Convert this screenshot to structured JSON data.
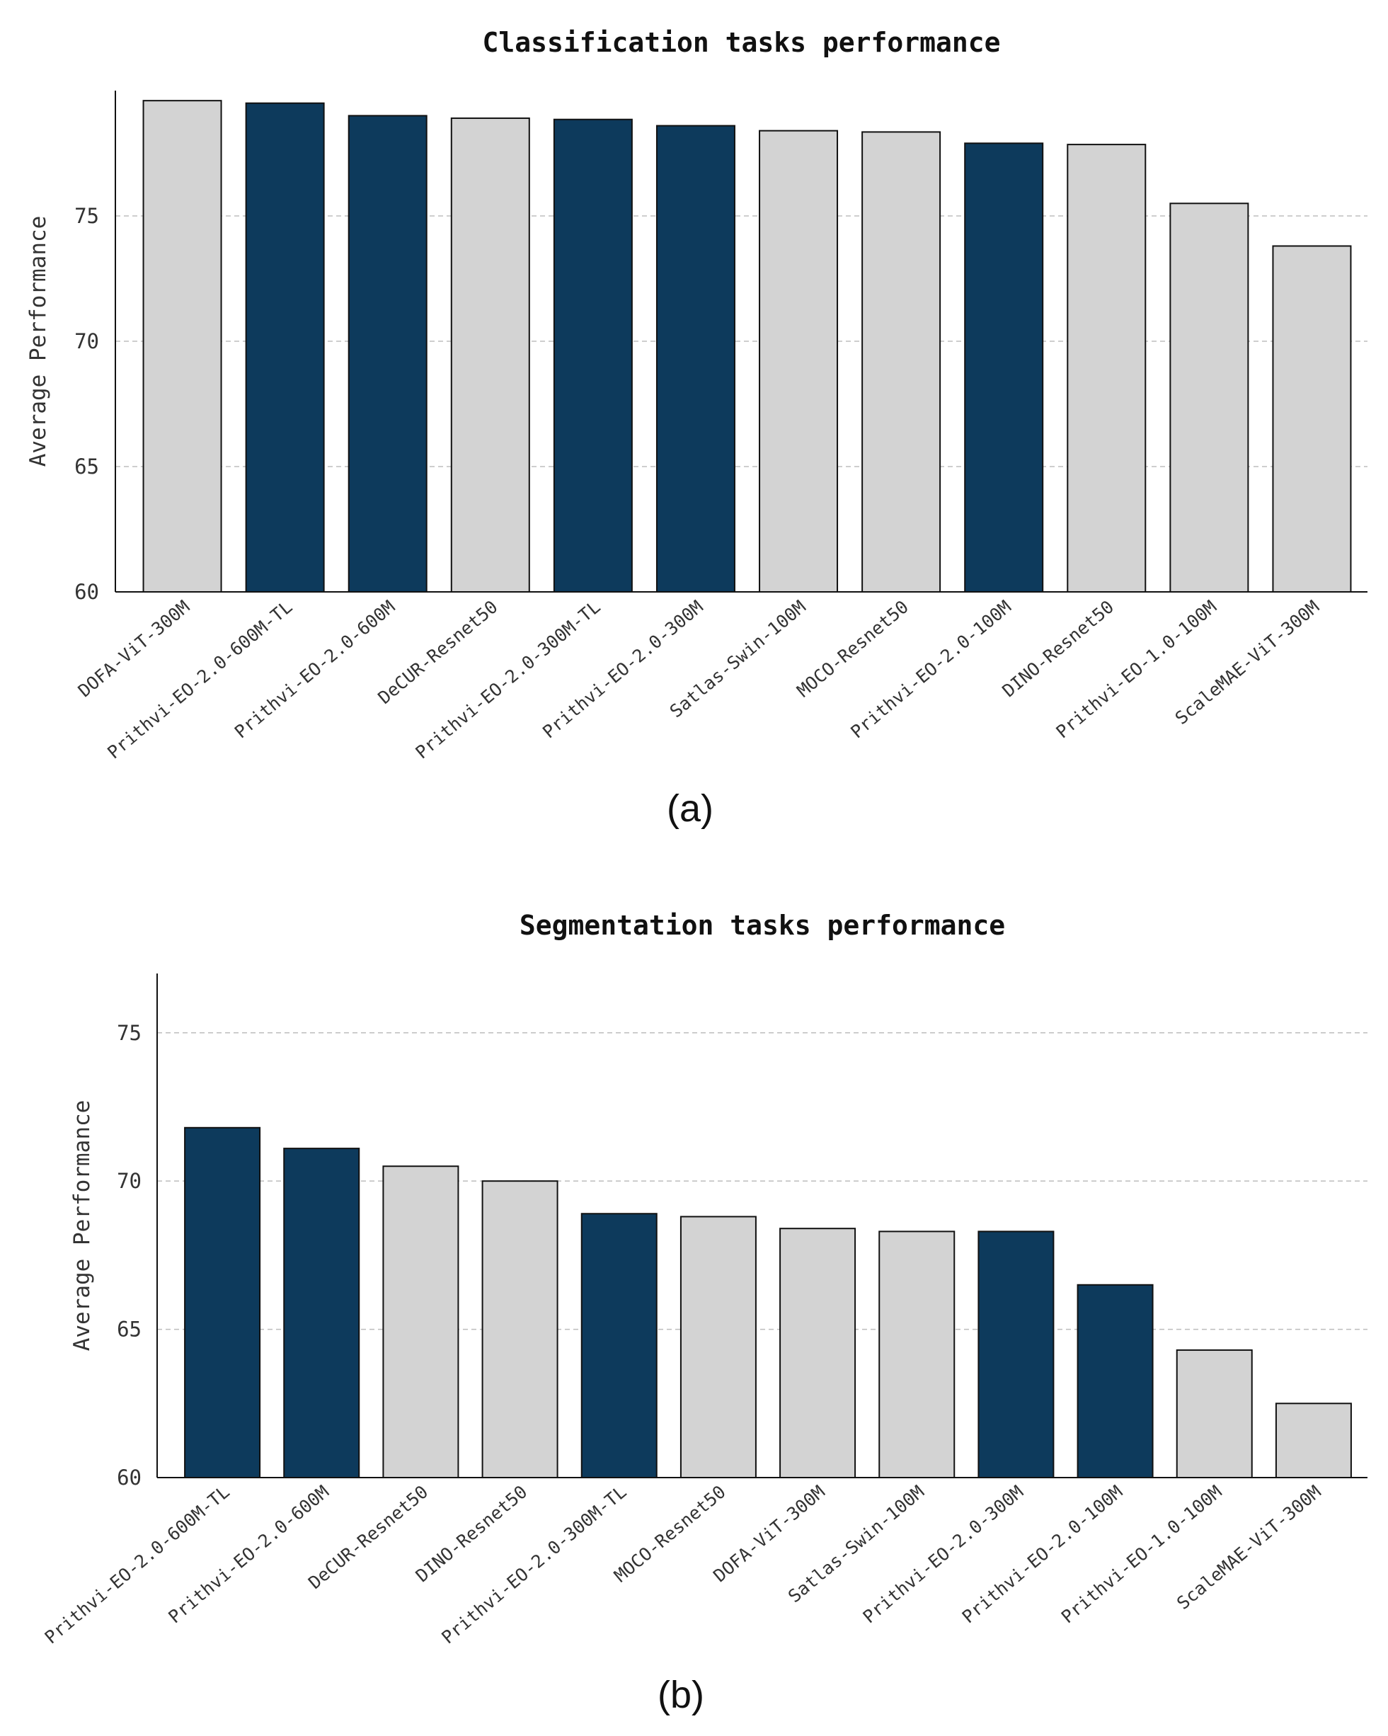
{
  "colors": {
    "highlight": "#0d3a5c",
    "other": "#d3d3d3"
  },
  "chart_data": [
    {
      "type": "bar",
      "panel_label": "(a)",
      "title": "Classification tasks performance",
      "xlabel": "",
      "ylabel": "Average Performance",
      "ylim": [
        60,
        80
      ],
      "yticks": [
        60,
        65,
        70,
        75
      ],
      "grid": "y-dashed",
      "categories": [
        "DOFA-ViT-300M",
        "Prithvi-EO-2.0-600M-TL",
        "Prithvi-EO-2.0-600M",
        "DeCUR-Resnet50",
        "Prithvi-EO-2.0-300M-TL",
        "Prithvi-EO-2.0-300M",
        "Satlas-Swin-100M",
        "MOCO-Resnet50",
        "Prithvi-EO-2.0-100M",
        "DINO-Resnet50",
        "Prithvi-EO-1.0-100M",
        "ScaleMAE-ViT-300M"
      ],
      "values": [
        79.6,
        79.5,
        79.0,
        78.9,
        78.85,
        78.6,
        78.4,
        78.35,
        77.9,
        77.85,
        75.5,
        73.8
      ],
      "highlighted": [
        false,
        true,
        true,
        false,
        true,
        true,
        false,
        false,
        true,
        false,
        false,
        false
      ]
    },
    {
      "type": "bar",
      "panel_label": "(b)",
      "title": "Segmentation tasks performance",
      "xlabel": "",
      "ylabel": "Average Performance",
      "ylim": [
        60,
        77
      ],
      "yticks": [
        60,
        65,
        70,
        75
      ],
      "grid": "y-dashed",
      "categories": [
        "Prithvi-EO-2.0-600M-TL",
        "Prithvi-EO-2.0-600M",
        "DeCUR-Resnet50",
        "DINO-Resnet50",
        "Prithvi-EO-2.0-300M-TL",
        "MOCO-Resnet50",
        "DOFA-ViT-300M",
        "Satlas-Swin-100M",
        "Prithvi-EO-2.0-300M",
        "Prithvi-EO-2.0-100M",
        "Prithvi-EO-1.0-100M",
        "ScaleMAE-ViT-300M"
      ],
      "values": [
        71.8,
        71.1,
        70.5,
        70.0,
        68.9,
        68.8,
        68.4,
        68.3,
        68.3,
        66.5,
        64.3,
        62.5
      ],
      "highlighted": [
        true,
        true,
        false,
        false,
        true,
        false,
        false,
        false,
        true,
        true,
        false,
        false
      ]
    }
  ]
}
